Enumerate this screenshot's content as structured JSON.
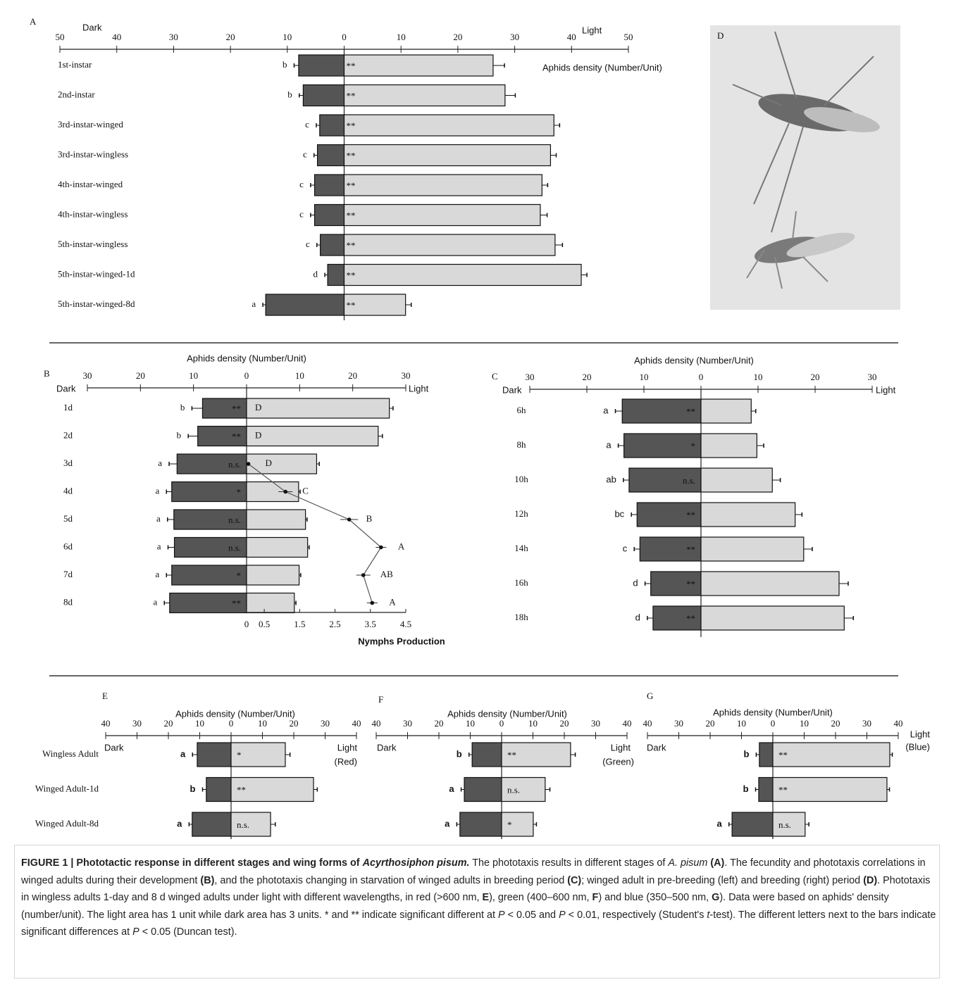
{
  "chart_data": [
    {
      "type": "bar",
      "panel": "A",
      "xlabel": "Aphids density (Number/Unit)",
      "categories": [
        "1st-instar",
        "2nd-instar",
        "3rd-instar-winged",
        "3rd-instar-wingless",
        "4th-instar-winged",
        "4th-instar-wingless",
        "5th-instar-wingless",
        "5th-instar-winged-1d",
        "5th-instar-winged-8d"
      ],
      "series": [
        {
          "name": "Dark",
          "color": "#555555",
          "values": [
            -8,
            -7.2,
            -4.3,
            -4.7,
            -5.2,
            -5.2,
            -4.2,
            -2.9,
            -13.8
          ],
          "errors": [
            0.8,
            0.7,
            0.6,
            0.6,
            0.7,
            0.7,
            0.6,
            0.5,
            0.5
          ]
        },
        {
          "name": "Light",
          "color": "#d9d9d9",
          "values": [
            26.2,
            28.3,
            36.9,
            36.3,
            34.8,
            34.5,
            37.1,
            41.7,
            10.8
          ],
          "errors": [
            2.0,
            1.8,
            1.0,
            1.0,
            1.0,
            1.2,
            1.3,
            1.0,
            1.0
          ]
        }
      ],
      "letters": [
        "b",
        "b",
        "c",
        "c",
        "c",
        "c",
        "c",
        "d",
        "a"
      ],
      "significance": [
        "**",
        "**",
        "**",
        "**",
        "**",
        "**",
        "**",
        "**",
        "**"
      ],
      "significance_bar": "Light",
      "xlim": [
        -50,
        50
      ],
      "xticks": [
        {
          "value": -50,
          "label": "50"
        },
        {
          "value": -40,
          "label": "40"
        },
        {
          "value": -30,
          "label": "30"
        },
        {
          "value": -20,
          "label": "20"
        },
        {
          "value": -10,
          "label": "10"
        },
        0,
        10,
        20,
        30,
        40,
        50
      ]
    },
    {
      "type": "bar",
      "panel": "B",
      "xlabel": "Aphids density (Number/Unit)",
      "categories": [
        "1d",
        "2d",
        "3d",
        "4d",
        "5d",
        "6d",
        "7d",
        "8d"
      ],
      "series": [
        {
          "name": "Dark",
          "color": "#555555",
          "values": [
            -8.3,
            -9.2,
            -13.1,
            -14.1,
            -13.7,
            -13.6,
            -14.1,
            -14.5
          ],
          "errors": [
            2.0,
            1.8,
            1.5,
            1.0,
            1.2,
            1.2,
            1.0,
            1.0
          ]
        },
        {
          "name": "Light",
          "color": "#d9d9d9",
          "values": [
            26.9,
            24.8,
            13.2,
            9.8,
            11.1,
            11.5,
            9.9,
            9.0
          ],
          "errors": [
            0.7,
            0.8,
            0.5,
            0.3,
            0.3,
            0.3,
            0.3,
            0.3
          ]
        }
      ],
      "letters": [
        "b",
        "b",
        "a",
        "a",
        "a",
        "a",
        "a",
        "a"
      ],
      "significance": [
        "**",
        "**",
        "n.s.",
        "*",
        "n.s.",
        "n.s.",
        "*",
        "**"
      ],
      "significance_bar": "Dark",
      "xlim": [
        -30,
        30
      ],
      "xticks": [
        {
          "value": -30,
          "label": "30"
        },
        {
          "value": -20,
          "label": "20"
        },
        {
          "value": -10,
          "label": "10"
        },
        0,
        10,
        20,
        30
      ],
      "line": {
        "name": "Nymphs Production",
        "color": "#555555",
        "values": [
          null,
          null,
          0.05,
          1.1,
          2.9,
          3.8,
          3.3,
          3.55
        ],
        "errors": [
          null,
          null,
          0.05,
          0.2,
          0.25,
          0.15,
          0.2,
          0.15
        ],
        "letters": [
          "D",
          "D",
          "D",
          "C",
          "B",
          "A",
          "AB",
          "A"
        ],
        "xlim": [
          0,
          4.5
        ],
        "xticks": [
          0,
          0.5,
          1.5,
          2.5,
          3.5,
          4.5
        ]
      }
    },
    {
      "type": "bar",
      "panel": "C",
      "xlabel": "Aphids density (Number/Unit)",
      "categories": [
        "6h",
        "8h",
        "10h",
        "12h",
        "14h",
        "16h",
        "18h"
      ],
      "series": [
        {
          "name": "Dark",
          "color": "#555555",
          "values": [
            -13.8,
            -13.5,
            -12.6,
            -11.2,
            -10.7,
            -8.8,
            -8.4
          ],
          "errors": [
            1.2,
            1.0,
            1.0,
            1.0,
            1.0,
            1.0,
            1.0
          ]
        },
        {
          "name": "Light",
          "color": "#d9d9d9",
          "values": [
            8.8,
            9.8,
            12.5,
            16.5,
            18.0,
            24.2,
            25.1
          ],
          "errors": [
            0.8,
            1.2,
            1.4,
            1.2,
            1.5,
            1.6,
            1.6
          ]
        }
      ],
      "letters": [
        "a",
        "a",
        "ab",
        "bc",
        "c",
        "d",
        "d"
      ],
      "significance": [
        "**",
        "*",
        "n.s.",
        "**",
        "**",
        "**",
        "**"
      ],
      "significance_bar": "Dark",
      "xlim": [
        -30,
        30
      ],
      "xticks": [
        {
          "value": -30,
          "label": "30"
        },
        {
          "value": -20,
          "label": "20"
        },
        {
          "value": -10,
          "label": "10"
        },
        0,
        10,
        20,
        30
      ]
    },
    {
      "type": "bar",
      "panel": "E",
      "xlabel": "Aphids density (Number/Unit)",
      "light_note": "(Red)",
      "categories": [
        "Wingless Adult",
        "Winged Adult-1d",
        "Winged Adult-8d"
      ],
      "series": [
        {
          "name": "Dark",
          "color": "#555555",
          "values": [
            -10.8,
            -7.9,
            -12.4
          ],
          "errors": [
            1.5,
            1.2,
            1.0
          ]
        },
        {
          "name": "Light",
          "color": "#d9d9d9",
          "values": [
            17.3,
            26.3,
            12.6
          ],
          "errors": [
            1.5,
            1.2,
            1.5
          ]
        }
      ],
      "letters": [
        "a",
        "b",
        "a"
      ],
      "significance": [
        "*",
        "**",
        "n.s."
      ],
      "significance_bar": "Light",
      "xlim": [
        -40,
        40
      ],
      "xticks": [
        {
          "value": -40,
          "label": "40"
        },
        {
          "value": -30,
          "label": "30"
        },
        {
          "value": -20,
          "label": "20"
        },
        {
          "value": -10,
          "label": "10"
        },
        0,
        10,
        20,
        30,
        40
      ]
    },
    {
      "type": "bar",
      "panel": "F",
      "xlabel": "Aphids density (Number/Unit)",
      "light_note": "(Green)",
      "series": [
        {
          "name": "Dark",
          "color": "#555555",
          "values": [
            -9.4,
            -11.9,
            -13.3
          ],
          "errors": [
            1.0,
            1.0,
            1.0
          ]
        },
        {
          "name": "Light",
          "color": "#d9d9d9",
          "values": [
            22,
            13.9,
            10.1
          ],
          "errors": [
            1.5,
            1.5,
            1.0
          ]
        }
      ],
      "letters": [
        "b",
        "a",
        "a"
      ],
      "significance": [
        "**",
        "n.s.",
        "*"
      ],
      "significance_bar": "Light",
      "xlim": [
        -40,
        40
      ],
      "xticks": [
        {
          "value": -40,
          "label": "40"
        },
        {
          "value": -30,
          "label": "30"
        },
        {
          "value": -20,
          "label": "20"
        },
        {
          "value": -10,
          "label": "10"
        },
        0,
        10,
        20,
        30,
        40
      ]
    },
    {
      "type": "bar",
      "panel": "G",
      "xlabel": "Aphids density (Number/Unit)",
      "light_note": "(Blue)",
      "series": [
        {
          "name": "Dark",
          "color": "#555555",
          "values": [
            -4.3,
            -4.5,
            -13
          ],
          "errors": [
            1.0,
            1.0,
            1.0
          ]
        },
        {
          "name": "Light",
          "color": "#d9d9d9",
          "values": [
            37.3,
            36.4,
            10.3
          ],
          "errors": [
            0.8,
            0.8,
            1.2
          ]
        }
      ],
      "letters": [
        "b",
        "b",
        "a"
      ],
      "significance": [
        "**",
        "**",
        "n.s."
      ],
      "significance_bar": "Light",
      "xlim": [
        -40,
        40
      ],
      "xticks": [
        {
          "value": -40,
          "label": "40"
        },
        {
          "value": -30,
          "label": "30"
        },
        {
          "value": -20,
          "label": "20"
        },
        {
          "value": -10,
          "label": "10"
        },
        0,
        10,
        20,
        30,
        40
      ]
    }
  ],
  "photo": {
    "panel": "D"
  },
  "caption": {
    "runs": [
      {
        "text": "FIGURE 1 | Phototactic response in different stages and wing forms of ",
        "bold": true
      },
      {
        "text": "Acyrthosiphon pisum.",
        "bold": true,
        "italic": true
      },
      {
        "text": " The phototaxis results in different stages of "
      },
      {
        "text": "A. pisum",
        "italic": true
      },
      {
        "text": " (A)",
        "bold": true
      },
      {
        "text": ". The fecundity and phototaxis correlations in winged adults during their development "
      },
      {
        "text": "(B)",
        "bold": true
      },
      {
        "text": ", and the phototaxis changing in starvation of winged adults in breeding period "
      },
      {
        "text": "(C)",
        "bold": true
      },
      {
        "text": "; winged adult in pre-breeding (left) and breeding (right) period "
      },
      {
        "text": "(D)",
        "bold": true
      },
      {
        "text": ". Phototaxis in wingless adults 1-day and 8 d winged adults under light with different wavelengths, in red (>600 nm, "
      },
      {
        "text": "E",
        "bold": true
      },
      {
        "text": "), green (400–600 nm, "
      },
      {
        "text": "F",
        "bold": true
      },
      {
        "text": ") and blue (350–500 nm, "
      },
      {
        "text": "G",
        "bold": true
      },
      {
        "text": "). Data were based on aphids' density (number/unit). The light area has 1 unit while dark area has 3 units. * and ** indicate significant different at "
      },
      {
        "text": "P",
        "italic": true
      },
      {
        "text": " < 0.05 and "
      },
      {
        "text": "P",
        "italic": true
      },
      {
        "text": " < 0.01, respectively (Student's "
      },
      {
        "text": "t",
        "italic": true
      },
      {
        "text": "-test). The different letters next to the bars indicate significant differences at "
      },
      {
        "text": "P",
        "italic": true
      },
      {
        "text": " < 0.05 (Duncan test)."
      }
    ]
  }
}
